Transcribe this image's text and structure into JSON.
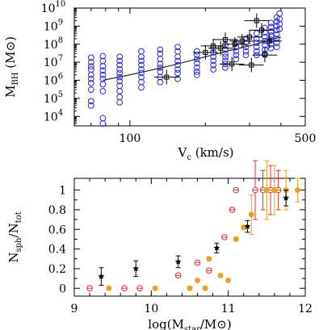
{
  "chart_data": [
    {
      "type": "scatter",
      "title": "",
      "xlabel": {
        "main": "V",
        "sub": "c",
        "tail": " (km/s)"
      },
      "ylabel": {
        "main": "M",
        "sub": "BH",
        "tail": " (M⊙)"
      },
      "x_scale": "log",
      "y_scale": "log",
      "xlim": [
        60,
        500
      ],
      "ylim": [
        3000,
        10000000000
      ],
      "x_ticks": [
        100,
        500
      ],
      "x_tick_labels": [
        "100",
        "500"
      ],
      "y_tick_exponents": [
        4,
        5,
        6,
        7,
        8,
        9,
        10
      ],
      "grid": false,
      "legend": "none",
      "relation_line": {
        "x": [
          78,
          100,
          130,
          160,
          200,
          250,
          300,
          350,
          400
        ],
        "y": [
          1000000,
          2000000,
          4500000,
          9000000,
          20000000,
          45000000,
          80000000,
          150000000,
          250000000
        ]
      },
      "series": [
        {
          "marker": "open-circle",
          "color": "#2b2bd6",
          "points": [
            [
              70,
              18000000
            ],
            [
              70,
              10000000
            ],
            [
              70,
              6000000
            ],
            [
              70,
              4000000
            ],
            [
              70,
              2000000
            ],
            [
              70,
              1200000
            ],
            [
              70,
              700000
            ],
            [
              70,
              300000
            ],
            [
              70,
              70000
            ],
            [
              70,
              40000
            ],
            [
              78,
              22000000
            ],
            [
              78,
              12000000
            ],
            [
              78,
              6000000
            ],
            [
              78,
              3500000
            ],
            [
              78,
              2000000
            ],
            [
              78,
              1200000
            ],
            [
              78,
              600000
            ],
            [
              78,
              250000
            ],
            [
              78,
              8000
            ],
            [
              78,
              4000
            ],
            [
              91,
              20000000
            ],
            [
              91,
              12000000
            ],
            [
              91,
              7000000
            ],
            [
              91,
              4000000
            ],
            [
              91,
              2500000
            ],
            [
              91,
              1500000
            ],
            [
              91,
              900000
            ],
            [
              91,
              500000
            ],
            [
              91,
              250000
            ],
            [
              91,
              120000
            ],
            [
              91,
              60000
            ],
            [
              111,
              40000000
            ],
            [
              111,
              20000000
            ],
            [
              111,
              12000000
            ],
            [
              111,
              7000000
            ],
            [
              111,
              4000000
            ],
            [
              111,
              2500000
            ],
            [
              111,
              1500000
            ],
            [
              111,
              800000
            ],
            [
              111,
              400000
            ],
            [
              132,
              50000000
            ],
            [
              132,
              30000000
            ],
            [
              132,
              15000000
            ],
            [
              132,
              8000000
            ],
            [
              132,
              5000000
            ],
            [
              132,
              3000000
            ],
            [
              132,
              1500000
            ],
            [
              132,
              800000
            ],
            [
              155,
              70000000
            ],
            [
              155,
              40000000
            ],
            [
              155,
              20000000
            ],
            [
              155,
              12000000
            ],
            [
              155,
              7000000
            ],
            [
              155,
              4000000
            ],
            [
              155,
              2500000
            ],
            [
              155,
              1200000
            ],
            [
              185,
              40000000
            ],
            [
              185,
              25000000
            ],
            [
              185,
              15000000
            ],
            [
              185,
              9000000
            ],
            [
              185,
              5000000
            ],
            [
              185,
              3000000
            ],
            [
              185,
              2000000
            ],
            [
              215,
              60000000
            ],
            [
              215,
              35000000
            ],
            [
              215,
              20000000
            ],
            [
              215,
              12000000
            ],
            [
              215,
              7000000
            ],
            [
              215,
              4000000
            ],
            [
              240,
              90000000
            ],
            [
              240,
              50000000
            ],
            [
              240,
              30000000
            ],
            [
              240,
              20000000
            ],
            [
              240,
              12000000
            ],
            [
              240,
              8000000
            ],
            [
              240,
              5000000
            ],
            [
              265,
              120000000
            ],
            [
              265,
              70000000
            ],
            [
              265,
              40000000
            ],
            [
              265,
              25000000
            ],
            [
              265,
              15000000
            ],
            [
              290,
              200000000
            ],
            [
              290,
              120000000
            ],
            [
              290,
              70000000
            ],
            [
              290,
              40000000
            ],
            [
              290,
              25000000
            ],
            [
              320,
              400000000
            ],
            [
              320,
              200000000
            ],
            [
              320,
              120000000
            ],
            [
              320,
              70000000
            ],
            [
              320,
              40000000
            ],
            [
              320,
              25000000
            ],
            [
              345,
              800000000
            ],
            [
              345,
              450000000
            ],
            [
              345,
              250000000
            ],
            [
              345,
              150000000
            ],
            [
              345,
              90000000
            ],
            [
              345,
              50000000
            ],
            [
              345,
              30000000
            ],
            [
              365,
              1500000000
            ],
            [
              365,
              900000000
            ],
            [
              365,
              500000000
            ],
            [
              365,
              300000000
            ],
            [
              365,
              180000000
            ],
            [
              365,
              100000000
            ],
            [
              365,
              60000000
            ],
            [
              385,
              3000000000
            ],
            [
              385,
              1800000000
            ],
            [
              385,
              1000000000
            ],
            [
              385,
              600000000
            ],
            [
              385,
              350000000
            ],
            [
              385,
              200000000
            ],
            [
              385,
              120000000
            ],
            [
              385,
              70000000
            ],
            [
              395,
              5000000000
            ],
            [
              395,
              2500000000
            ],
            [
              395,
              1300000000
            ],
            [
              395,
              700000000
            ]
          ]
        },
        {
          "marker": "open-square-errorbar",
          "color": "#000000",
          "points": [
            [
              215,
              80000000
            ],
            [
              240,
              180000000
            ],
            [
              262,
              100000000
            ],
            [
              280,
              150000000
            ],
            [
              300,
              250000000
            ],
            [
              320,
              2000000000
            ],
            [
              200,
              35000000
            ],
            [
              230,
              60000000
            ],
            [
              140,
              1500000
            ],
            [
              255,
              8000000
            ],
            [
              305,
              7000000
            ],
            [
              335,
              600000000
            ],
            [
              360,
              150000000
            ],
            [
              345,
              25000000
            ]
          ],
          "xerr_frac": 0.12,
          "yerr_frac": 2.5
        }
      ]
    },
    {
      "type": "scatter",
      "title": "",
      "xlabel": {
        "main": "log(M",
        "sub": "star",
        "tail": "/M⊙)"
      },
      "ylabel": {
        "main": "N",
        "sub": "sph",
        "mid": "/N",
        "sub2": "tot"
      },
      "xlim": [
        9,
        12
      ],
      "ylim": [
        -0.08,
        1.12
      ],
      "x_ticks": [
        9,
        10,
        11,
        12
      ],
      "y_ticks": [
        0,
        0.2,
        0.4,
        0.6,
        0.8,
        1
      ],
      "grid": false,
      "legend": "none",
      "series": [
        {
          "marker": "open-circle-errorbar",
          "color": "#e03030",
          "points": [
            [
              9.2,
              0.0
            ],
            [
              9.65,
              0.0
            ],
            [
              9.85,
              0.0
            ],
            [
              10.35,
              0.13
            ],
            [
              10.6,
              0.26
            ],
            [
              10.75,
              0.18
            ],
            [
              10.95,
              0.52
            ],
            [
              11.05,
              0.8
            ],
            [
              11.1,
              1.0
            ],
            [
              11.35,
              1.0
            ],
            [
              11.45,
              1.0
            ],
            [
              11.55,
              1.0
            ],
            [
              11.65,
              1.0
            ]
          ],
          "yerr": [
            0,
            0,
            0,
            0.02,
            0.02,
            0.02,
            0.02,
            0.02,
            0.02,
            0.3,
            0.2,
            0.25,
            0.2
          ]
        },
        {
          "marker": "filled-circle-errorbar",
          "color": "#f0a020",
          "points": [
            [
              9.45,
              0.0
            ],
            [
              10.05,
              0.0
            ],
            [
              10.5,
              0.0
            ],
            [
              10.6,
              0.08
            ],
            [
              10.7,
              0.0
            ],
            [
              10.75,
              0.3
            ],
            [
              10.9,
              0.13
            ],
            [
              11.0,
              0.08
            ],
            [
              11.1,
              0.5
            ],
            [
              11.2,
              0.62
            ],
            [
              11.3,
              0.75
            ],
            [
              11.5,
              1.0
            ],
            [
              11.6,
              1.0
            ],
            [
              11.75,
              1.0
            ],
            [
              11.9,
              1.0
            ]
          ],
          "yerr": [
            0,
            0,
            0,
            0,
            0,
            0,
            0,
            0,
            0.02,
            0.02,
            0.2,
            0.3,
            0.25,
            0.2,
            0.12
          ]
        },
        {
          "marker": "star-errorbar",
          "color": "#000000",
          "points": [
            [
              9.35,
              0.12
            ],
            [
              9.8,
              0.2
            ],
            [
              10.35,
              0.27
            ],
            [
              10.85,
              0.41
            ],
            [
              11.25,
              0.63
            ],
            [
              11.75,
              0.92
            ]
          ],
          "yerr": [
            0.09,
            0.08,
            0.06,
            0.05,
            0.06,
            0.08
          ]
        }
      ]
    }
  ]
}
